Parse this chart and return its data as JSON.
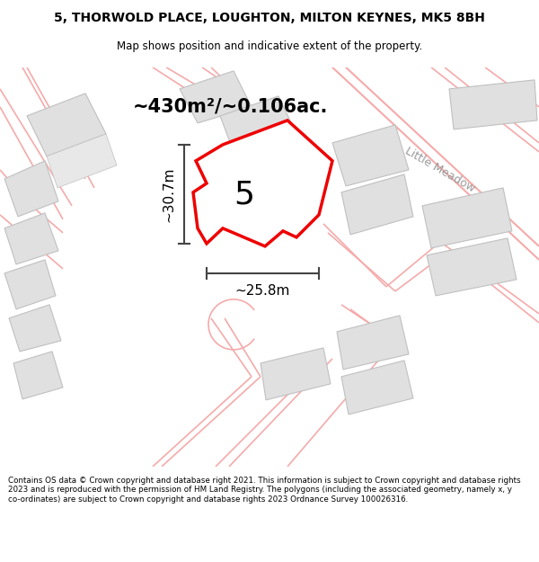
{
  "title": "5, THORWOLD PLACE, LOUGHTON, MILTON KEYNES, MK5 8BH",
  "subtitle": "Map shows position and indicative extent of the property.",
  "footer": "Contains OS data © Crown copyright and database right 2021. This information is subject to Crown copyright and database rights 2023 and is reproduced with the permission of HM Land Registry. The polygons (including the associated geometry, namely x, y co-ordinates) are subject to Crown copyright and database rights 2023 Ordnance Survey 100026316.",
  "area_label": "~430m²/~0.106ac.",
  "width_label": "~25.8m",
  "height_label": "~30.7m",
  "plot_number": "5",
  "street_name": "Little Meadow",
  "map_bg": "#f8f8f8",
  "plot_color": "#ee0000",
  "plot_fill": "#ffffff",
  "building_color": "#e0e0e0",
  "building_edge": "#c0c0c0",
  "pink_line": "#f5aaaa",
  "pink_fill": "#fce8e8",
  "dim_color": "#444444"
}
